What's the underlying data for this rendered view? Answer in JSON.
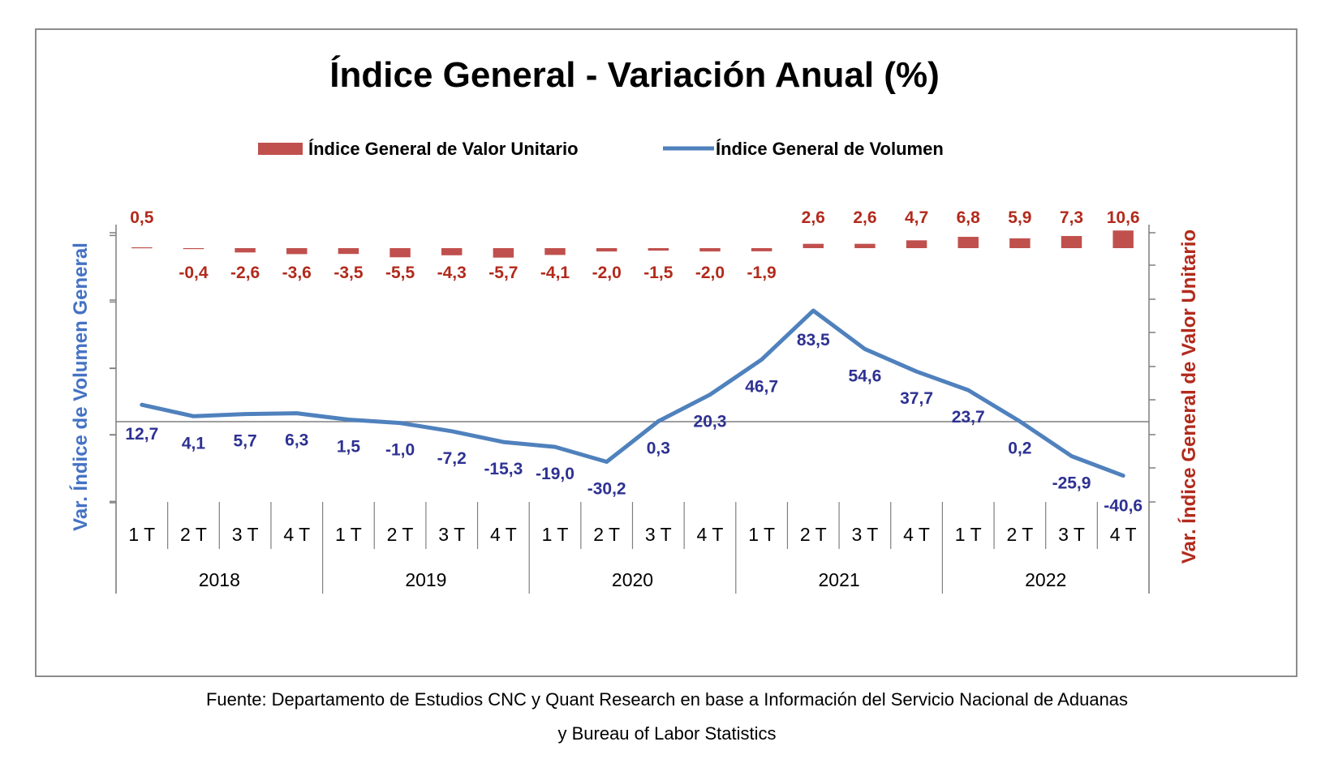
{
  "chart_data": {
    "type": "bar+line",
    "title": "Índice General - Variación Anual (%)",
    "legend_position": "top",
    "categories": [
      "1 T",
      "2 T",
      "3 T",
      "4 T",
      "1 T",
      "2 T",
      "3 T",
      "4 T",
      "1 T",
      "2 T",
      "3 T",
      "4 T",
      "1 T",
      "2 T",
      "3 T",
      "4 T",
      "1 T",
      "2 T",
      "3 T",
      "4 T"
    ],
    "years": [
      "2018",
      "2019",
      "2020",
      "2021",
      "2022"
    ],
    "series": [
      {
        "name": "Índice General de Valor Unitario",
        "kind": "bar",
        "axis": "right",
        "color": "#c0504d",
        "label_color": "#b22a1c",
        "values": [
          0.5,
          -0.4,
          -2.6,
          -3.6,
          -3.5,
          -5.5,
          -4.3,
          -5.7,
          -4.1,
          -2.0,
          -1.5,
          -2.0,
          -1.9,
          2.6,
          2.6,
          4.7,
          6.8,
          5.9,
          7.3,
          10.6
        ],
        "labels": [
          "0,5",
          "-0,4",
          "-2,6",
          "-3,6",
          "-3,5",
          "-5,5",
          "-4,3",
          "-5,7",
          "-4,1",
          "-2,0",
          "-1,5",
          "-2,0",
          "-1,9",
          "2,6",
          "2,6",
          "4,7",
          "6,8",
          "5,9",
          "7,3",
          "10,6"
        ]
      },
      {
        "name": "Índice General de Volumen",
        "kind": "line",
        "axis": "left",
        "color": "#4f81bd",
        "label_color": "#2e3192",
        "values": [
          12.7,
          4.1,
          5.7,
          6.3,
          1.5,
          -1.0,
          -7.2,
          -15.3,
          -19.0,
          -30.2,
          0.3,
          20.3,
          46.7,
          83.5,
          54.6,
          37.7,
          23.7,
          0.2,
          -25.9,
          -40.6
        ],
        "labels": [
          "12,7",
          "4,1",
          "5,7",
          "6,3",
          "1,5",
          "-1,0",
          "-7,2",
          "-15,3",
          "-19,0",
          "-30,2",
          "0,3",
          "20,3",
          "46,7",
          "83,5",
          "54,6",
          "37,7",
          "23,7",
          "0,2",
          "-25,9",
          "-40,6"
        ]
      }
    ],
    "y_left": {
      "label": "Var. Índice de Volumen General",
      "range": [
        -60,
        140
      ],
      "color": "#4472c4"
    },
    "y_right": {
      "label": "Var. Índice General de Valor Unitario",
      "range": [
        -52,
        13
      ],
      "color": "#b22a1c"
    },
    "grid": false
  },
  "source": {
    "line1": "Fuente: Departamento de Estudios CNC y Quant Research en base a Información del Servicio Nacional de Aduanas",
    "line2": "y Bureau of Labor Statistics"
  }
}
